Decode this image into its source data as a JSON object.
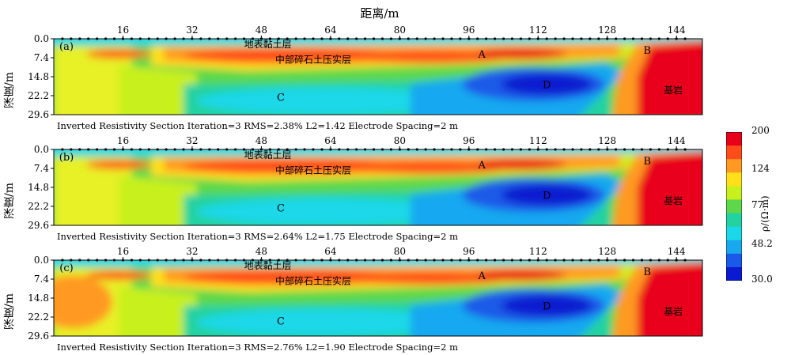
{
  "x_axis_title": "距离/m",
  "y_axis_title": "深度/m",
  "x_ticks": [
    "16",
    "32",
    "48",
    "64",
    "80",
    "96",
    "112",
    "128",
    "144"
  ],
  "depth_ticks": [
    "0.0",
    "7.4",
    "14.8",
    "22.2",
    "29.6"
  ],
  "colorbar": {
    "title": "ρ/(Ω·m)",
    "tick_labels": [
      "200",
      "124",
      "77",
      "48.2",
      "30.0"
    ],
    "colors": [
      "#e8001a",
      "#ff4d1a",
      "#ff9922",
      "#ffe01a",
      "#c8f01e",
      "#5ed84a",
      "#22d2a0",
      "#1ad8e8",
      "#18a8f0",
      "#1a5ae8",
      "#0a1ad0"
    ]
  },
  "panels": [
    {
      "tag": "(a)",
      "caption": "Inverted Resistivity Section   Iteration=3   RMS=2.38%   L2=1.42   Electrode Spacing=2 m",
      "labels": {
        "surface": "地表黏土层",
        "middle": "中部碎石土压实层",
        "A": "A",
        "B": "B",
        "C": "C",
        "D": "D",
        "bedrock": "基岩"
      }
    },
    {
      "tag": "(b)",
      "caption": "Inverted Resistivity Section   Iteration=3   RMS=2.64%   L2=1.75   Electrode Spacing=2 m",
      "labels": {
        "surface": "地表黏土层",
        "middle": "中部碎石土压实层",
        "A": "A",
        "B": "B",
        "C": "C",
        "D": "D",
        "bedrock": "基岩"
      }
    },
    {
      "tag": "(c)",
      "caption": "Inverted Resistivity Section   Iteration=3   RMS=2.76%   L2=1.90   Electrode Spacing=2 m",
      "labels": {
        "surface": "地表黏土层",
        "middle": "中部碎石土压实层",
        "A": "A",
        "B": "B",
        "C": "C",
        "D": "D",
        "bedrock": "基岩"
      }
    }
  ],
  "chart_data": {
    "type": "heatmap",
    "xlabel": "距离/m",
    "ylabel": "深度/m",
    "xlim": [
      0,
      150
    ],
    "ylim": [
      29.6,
      0.0
    ],
    "value_label": "ρ/(Ω·m)",
    "value_range": [
      30.0,
      200
    ],
    "sections": [
      {
        "name": "(a)",
        "iteration": 3,
        "rms_percent": 2.38,
        "l2": 1.42,
        "electrode_spacing_m": 2
      },
      {
        "name": "(b)",
        "iteration": 3,
        "rms_percent": 2.64,
        "l2": 1.75,
        "electrode_spacing_m": 2
      },
      {
        "name": "(c)",
        "iteration": 3,
        "rms_percent": 2.76,
        "l2": 1.9,
        "electrode_spacing_m": 2
      }
    ]
  }
}
